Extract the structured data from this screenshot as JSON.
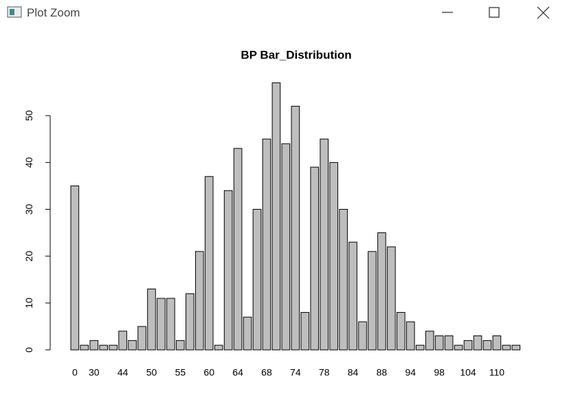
{
  "window_title": "Plot Zoom",
  "chart_data": {
    "type": "bar",
    "title": "BP Bar_Distribution",
    "categories": [
      "0",
      null,
      "30",
      null,
      null,
      "44",
      null,
      null,
      "50",
      null,
      null,
      "55",
      null,
      null,
      "60",
      null,
      null,
      "64",
      null,
      null,
      "68",
      null,
      null,
      "74",
      null,
      null,
      "78",
      null,
      null,
      "84",
      null,
      null,
      "88",
      null,
      null,
      "94",
      null,
      null,
      "98",
      null,
      null,
      "104",
      null,
      null,
      "110",
      null,
      null
    ],
    "values": [
      35,
      1,
      2,
      1,
      1,
      4,
      2,
      5,
      13,
      11,
      11,
      2,
      12,
      21,
      37,
      1,
      34,
      43,
      7,
      30,
      45,
      57,
      44,
      52,
      8,
      39,
      45,
      40,
      30,
      23,
      6,
      21,
      25,
      22,
      8,
      6,
      1,
      4,
      3,
      3,
      1,
      2,
      3,
      2,
      3,
      1,
      1
    ],
    "color": "#bebebe",
    "ylim": [
      0,
      60
    ],
    "yticks": [
      0,
      10,
      20,
      30,
      40,
      50
    ],
    "grid": false
  }
}
